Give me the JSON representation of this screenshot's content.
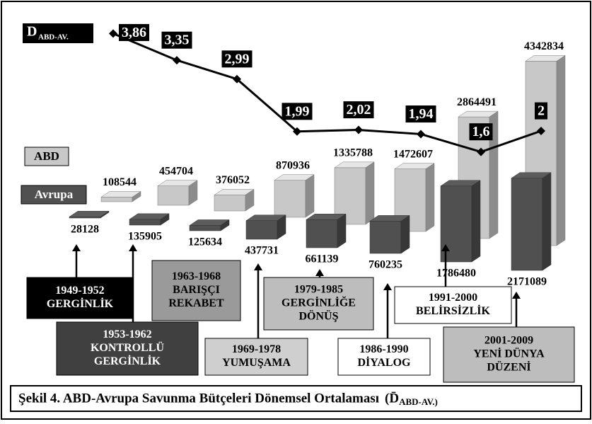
{
  "chart_data": {
    "type": "bar3d",
    "title": "Şekil 4. ABD-Avrupa Savunma Bütçeleri Dönemsel Ortalaması",
    "title_symbol": "(D̄",
    "title_subscript": "ABD-AV.)",
    "categories": [
      "1949-1952",
      "1953-1962",
      "1963-1968",
      "1969-1978",
      "1979-1985",
      "1986-1990",
      "1991-2000",
      "2001-2009"
    ],
    "period_names": [
      [
        "GERGİNLİK"
      ],
      [
        "KONTROLLÜ",
        "GERGİNLİK"
      ],
      [
        "BARIŞÇI",
        "REKABET"
      ],
      [
        "YUMUŞAMA"
      ],
      [
        "GERGİNLİĞE",
        "DÖNÜŞ"
      ],
      [
        "DİYALOG"
      ],
      [
        "BELİRSİZLİK"
      ],
      [
        "YENİ DÜNYA",
        "DÜZENİ"
      ]
    ],
    "series": [
      {
        "name": "ABD",
        "color": "#c8c8c8",
        "values": [
          108544,
          454704,
          376052,
          870936,
          1335788,
          1472607,
          2864491,
          4342834
        ]
      },
      {
        "name": "Avrupa",
        "color": "#505050",
        "values": [
          28128,
          135905,
          125634,
          437731,
          661139,
          760235,
          1786480,
          2171089
        ]
      },
      {
        "name": "D",
        "name_subscript": "ABD-AV.",
        "type": "line",
        "color": "#000000",
        "values": [
          3.86,
          3.35,
          2.99,
          1.99,
          2.02,
          1.94,
          1.6,
          2
        ],
        "value_labels": [
          "3,86",
          "3,35",
          "2,99",
          "1,99",
          "2,02",
          "1,94",
          "1,6",
          "2"
        ]
      }
    ]
  }
}
